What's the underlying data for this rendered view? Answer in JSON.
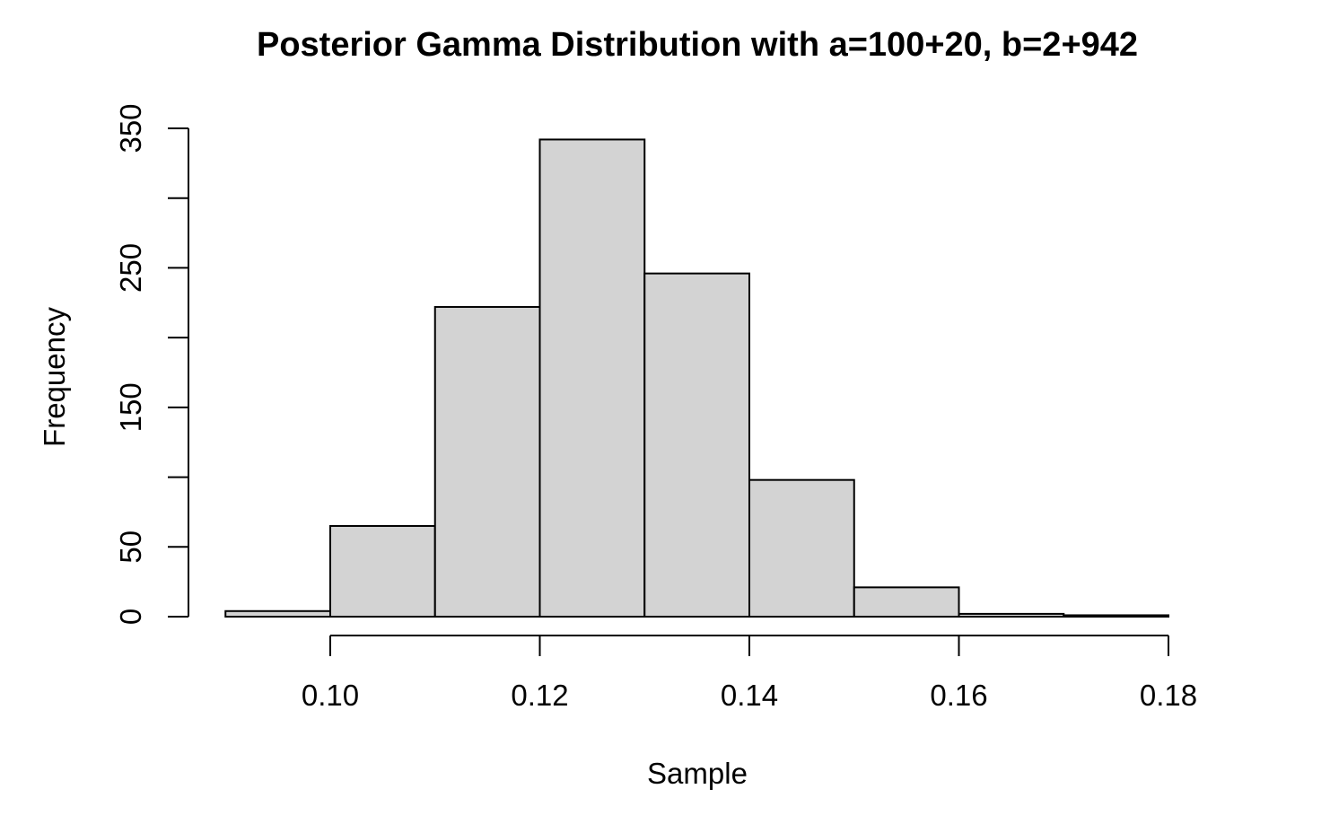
{
  "chart_data": {
    "type": "bar",
    "title": "Posterior Gamma Distribution with a=100+20, b=2+942",
    "xlabel": "Sample",
    "ylabel": "Frequency",
    "bin_edges": [
      0.09,
      0.1,
      0.11,
      0.12,
      0.13,
      0.14,
      0.15,
      0.16,
      0.17,
      0.18
    ],
    "values": [
      4,
      65,
      222,
      342,
      246,
      98,
      21,
      2,
      1
    ],
    "x_ticks": [
      0.1,
      0.12,
      0.14,
      0.16,
      0.18
    ],
    "x_tick_labels": [
      "0.10",
      "0.12",
      "0.14",
      "0.16",
      "0.18"
    ],
    "y_ticks": [
      0,
      50,
      100,
      150,
      200,
      250,
      300,
      350
    ],
    "y_tick_labels": [
      "0",
      "50",
      "",
      "150",
      "",
      "250",
      "",
      "350"
    ],
    "xlim": [
      0.1,
      0.18
    ],
    "ylim": [
      0,
      350
    ],
    "bar_color": "#d3d3d3",
    "grid": false
  }
}
